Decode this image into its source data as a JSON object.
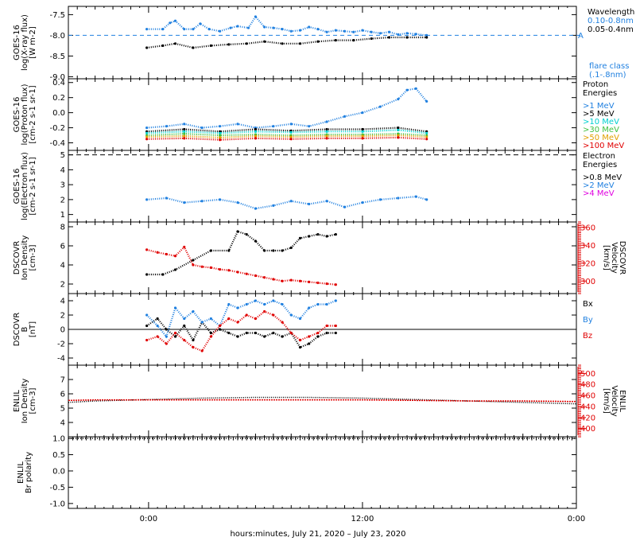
{
  "figure": {
    "xlabel": "hours:minutes, July 21, 2020 – July 23, 2020",
    "x_tick_labels": [
      "0:00",
      "12:00",
      "0:00"
    ]
  },
  "chart_data": [
    {
      "type": "scatter",
      "panel": "xray",
      "ylabel": [
        "GOES-16",
        "log(X-ray flux)",
        "[W m-2]"
      ],
      "yticks": [
        "-7.5",
        "-8.0",
        "-8.5",
        "-9.0"
      ],
      "ylim": [
        -9.05,
        -7.3
      ],
      "legend_title": "Wavelength",
      "flare_class": [
        "flare class",
        "(.1-.8nm)"
      ],
      "flare_marker": "A",
      "flare_level": -8.0,
      "series": [
        {
          "name": "0.10-0.8nm",
          "color": "#2080e0",
          "x": [
            -0.1,
            0.8,
            1.2,
            1.5,
            2.0,
            2.5,
            2.9,
            3.4,
            4.0,
            4.6,
            5.0,
            5.6,
            6.0,
            6.5,
            7.0,
            7.5,
            8.0,
            8.5,
            9.0,
            9.5,
            10.0,
            10.5,
            11.0,
            11.5,
            12.0,
            12.5,
            13.0,
            13.5,
            14.0,
            14.5,
            15.0,
            15.6
          ],
          "y": [
            -7.85,
            -7.85,
            -7.7,
            -7.65,
            -7.85,
            -7.85,
            -7.72,
            -7.85,
            -7.9,
            -7.82,
            -7.78,
            -7.82,
            -7.55,
            -7.8,
            -7.82,
            -7.85,
            -7.9,
            -7.88,
            -7.8,
            -7.85,
            -7.92,
            -7.88,
            -7.9,
            -7.92,
            -7.88,
            -7.92,
            -7.95,
            -7.92,
            -7.98,
            -7.95,
            -7.97,
            -8.0
          ]
        },
        {
          "name": "0.05-0.4nm",
          "color": "#000000",
          "x": [
            -0.1,
            0.8,
            1.5,
            2.5,
            3.5,
            4.5,
            5.5,
            6.5,
            7.5,
            8.5,
            9.5,
            10.5,
            11.5,
            12.5,
            13.5,
            14.5,
            15.6
          ],
          "y": [
            -8.3,
            -8.25,
            -8.2,
            -8.3,
            -8.25,
            -8.22,
            -8.2,
            -8.15,
            -8.2,
            -8.2,
            -8.15,
            -8.12,
            -8.12,
            -8.08,
            -8.05,
            -8.05,
            -8.05
          ]
        }
      ]
    },
    {
      "type": "scatter",
      "panel": "proton",
      "ylabel": [
        "GOES-16",
        "log(Proton flux)",
        "[cm-2 s-1 sr-1]"
      ],
      "yticks": [
        "0.4",
        "0.2",
        "0.0",
        "-0.2",
        "-0.4"
      ],
      "ylim": [
        -0.5,
        0.45
      ],
      "legend_title": [
        "Proton",
        "Energies"
      ],
      "series": [
        {
          "name": ">1 MeV",
          "color": "#2080e0",
          "x": [
            -0.1,
            1,
            2,
            3,
            4,
            5,
            6,
            7,
            8,
            9,
            10,
            11,
            12,
            13,
            14,
            14.5,
            15,
            15.6
          ],
          "y": [
            -0.2,
            -0.18,
            -0.15,
            -0.2,
            -0.18,
            -0.15,
            -0.2,
            -0.18,
            -0.15,
            -0.18,
            -0.12,
            -0.05,
            0.0,
            0.08,
            0.18,
            0.3,
            0.32,
            0.15
          ]
        },
        {
          "name": ">5 MeV",
          "color": "#000000",
          "x": [
            -0.1,
            2,
            4,
            6,
            8,
            10,
            12,
            14,
            15.6
          ],
          "y": [
            -0.25,
            -0.22,
            -0.25,
            -0.22,
            -0.24,
            -0.22,
            -0.22,
            -0.2,
            -0.25
          ]
        },
        {
          "name": ">10 MeV",
          "color": "#00d0d0",
          "x": [
            -0.1,
            2,
            4,
            6,
            8,
            10,
            12,
            14,
            15.6
          ],
          "y": [
            -0.27,
            -0.25,
            -0.27,
            -0.25,
            -0.26,
            -0.25,
            -0.25,
            -0.23,
            -0.27
          ]
        },
        {
          "name": ">30 MeV",
          "color": "#40c040",
          "x": [
            -0.1,
            2,
            4,
            6,
            8,
            10,
            12,
            14,
            15.6
          ],
          "y": [
            -0.3,
            -0.28,
            -0.3,
            -0.29,
            -0.3,
            -0.29,
            -0.29,
            -0.28,
            -0.3
          ]
        },
        {
          "name": ">50 MeV",
          "color": "#e0a000",
          "x": [
            -0.1,
            2,
            4,
            6,
            8,
            10,
            12,
            14,
            15.6
          ],
          "y": [
            -0.32,
            -0.31,
            -0.33,
            -0.31,
            -0.32,
            -0.31,
            -0.31,
            -0.3,
            -0.32
          ]
        },
        {
          "name": ">100 MeV",
          "color": "#e00000",
          "x": [
            -0.1,
            2,
            4,
            6,
            8,
            10,
            12,
            14,
            15.6
          ],
          "y": [
            -0.35,
            -0.34,
            -0.36,
            -0.34,
            -0.35,
            -0.34,
            -0.34,
            -0.33,
            -0.35
          ]
        }
      ]
    },
    {
      "type": "scatter",
      "panel": "electron",
      "ylabel": [
        "GOES-16",
        "log(Electron flux)",
        "[cm-2 s-1 sr-1]"
      ],
      "yticks": [
        "5",
        "4",
        "3",
        "2",
        "1"
      ],
      "ylim": [
        0.5,
        5.3
      ],
      "dashed_level": 5,
      "legend_title": [
        "Electron",
        "Energies"
      ],
      "series": [
        {
          "name": ">0.8 MeV",
          "color": "#000000",
          "x": [],
          "y": []
        },
        {
          "name": ">2 MeV",
          "color": "#2080e0",
          "x": [
            -0.1,
            1,
            2,
            3,
            4,
            5,
            6,
            7,
            8,
            9,
            10,
            11,
            12,
            13,
            14,
            15,
            15.6
          ],
          "y": [
            2.0,
            2.1,
            1.8,
            1.9,
            2.0,
            1.8,
            1.4,
            1.6,
            1.9,
            1.7,
            1.9,
            1.5,
            1.8,
            2.0,
            2.1,
            2.2,
            2.0
          ]
        },
        {
          "name": ">4 MeV",
          "color": "#e000e0",
          "x": [],
          "y": []
        }
      ]
    },
    {
      "type": "scatter",
      "panel": "dscovr_density",
      "ylabel": [
        "DSCOVR",
        "Ion Density",
        "[cm-3]"
      ],
      "y2label": [
        "DSCOVR",
        "Velocity",
        "[km/s]"
      ],
      "yticks": [
        "8",
        "6",
        "4",
        "2"
      ],
      "ylim": [
        1.0,
        8.5
      ],
      "y2ticks": [
        "360",
        "340",
        "320",
        "300"
      ],
      "y2lim": [
        286,
        366
      ],
      "series": [
        {
          "name": "density",
          "color": "#000000",
          "x": [
            -0.1,
            0.8,
            1.5,
            2.5,
            3.5,
            4.5,
            5.0,
            5.5,
            6.0,
            6.5,
            7.0,
            7.5,
            8.0,
            8.5,
            9.0,
            9.5,
            10.0,
            10.5
          ],
          "y": [
            3.0,
            3.0,
            3.5,
            4.5,
            5.5,
            5.5,
            7.5,
            7.2,
            6.5,
            5.5,
            5.5,
            5.5,
            5.8,
            6.8,
            7.0,
            7.2,
            7.0,
            7.2
          ]
        },
        {
          "name": "velocity",
          "color": "#e00000",
          "axis": "y2",
          "x": [
            -0.1,
            0.5,
            1.0,
            1.5,
            2.0,
            2.5,
            3.0,
            3.5,
            4.0,
            4.5,
            5.0,
            5.5,
            6.0,
            6.5,
            7.0,
            7.5,
            8.0,
            8.5,
            9.0,
            9.5,
            10.0,
            10.5
          ],
          "y": [
            335,
            332,
            330,
            328,
            338,
            318,
            316,
            315,
            313,
            312,
            310,
            308,
            306,
            304,
            302,
            300,
            301,
            300,
            299,
            298,
            297,
            296
          ]
        }
      ]
    },
    {
      "type": "scatter",
      "panel": "dscovr_b",
      "ylabel": [
        "DSCOVR",
        "B",
        "[nT]"
      ],
      "yticks": [
        "4",
        "2",
        "0",
        "-2",
        "-4"
      ],
      "ylim": [
        -5.0,
        5.0
      ],
      "series": [
        {
          "name": "Bx",
          "color": "#000000",
          "x": [
            -0.1,
            0.5,
            1.0,
            1.5,
            2.0,
            2.5,
            3.0,
            3.5,
            4.0,
            4.5,
            5.0,
            5.5,
            6.0,
            6.5,
            7.0,
            7.5,
            8.0,
            8.5,
            9.0,
            9.5,
            10.0,
            10.5
          ],
          "y": [
            0.5,
            1.5,
            0.0,
            -1.0,
            0.5,
            -1.5,
            1.0,
            -0.5,
            0.0,
            -0.5,
            -1.0,
            -0.5,
            -0.5,
            -1.0,
            -0.5,
            -1.0,
            -0.5,
            -2.5,
            -2.0,
            -1.0,
            -0.5,
            -0.5
          ]
        },
        {
          "name": "By",
          "color": "#2080e0",
          "x": [
            -0.1,
            0.5,
            1.0,
            1.5,
            2.0,
            2.5,
            3.0,
            3.5,
            4.0,
            4.5,
            5.0,
            5.5,
            6.0,
            6.5,
            7.0,
            7.5,
            8.0,
            8.5,
            9.0,
            9.5,
            10.0,
            10.5
          ],
          "y": [
            2.0,
            0.5,
            -1.0,
            3.0,
            1.5,
            2.5,
            1.0,
            1.5,
            0.5,
            3.5,
            3.0,
            3.5,
            4.0,
            3.5,
            4.0,
            3.5,
            2.0,
            1.5,
            3.0,
            3.5,
            3.5,
            4.0
          ]
        },
        {
          "name": "Bz",
          "color": "#e00000",
          "x": [
            -0.1,
            0.5,
            1.0,
            1.5,
            2.0,
            2.5,
            3.0,
            3.5,
            4.0,
            4.5,
            5.0,
            5.5,
            6.0,
            6.5,
            7.0,
            7.5,
            8.0,
            8.5,
            9.0,
            9.5,
            10.0,
            10.5
          ],
          "y": [
            -1.5,
            -1.0,
            -2.0,
            -0.5,
            -1.5,
            -2.5,
            -3.0,
            -1.0,
            0.5,
            1.5,
            1.0,
            2.0,
            1.5,
            2.5,
            2.0,
            1.0,
            -0.5,
            -1.5,
            -1.0,
            -0.5,
            0.5,
            0.5
          ]
        }
      ]
    },
    {
      "type": "line",
      "panel": "enlil_density",
      "ylabel": [
        "ENLIL",
        "Ion Density",
        "[cm-3]"
      ],
      "y2label": [
        "ENLIL",
        "Velocity",
        "[km/s]"
      ],
      "yticks": [
        "7",
        "6",
        "5",
        "4"
      ],
      "ylim": [
        3.0,
        8.0
      ],
      "y2ticks": [
        "500",
        "480",
        "460",
        "440",
        "420",
        "400"
      ],
      "y2lim": [
        385,
        515
      ],
      "series": [
        {
          "name": "density",
          "color": "#000000",
          "x": [
            -4.5,
            -3,
            0,
            3,
            6,
            9,
            12,
            15,
            18,
            21,
            24
          ],
          "y": [
            5.4,
            5.5,
            5.6,
            5.7,
            5.75,
            5.75,
            5.7,
            5.6,
            5.5,
            5.4,
            5.3
          ]
        },
        {
          "name": "velocity",
          "color": "#e00000",
          "axis": "y2",
          "x": [
            -4.5,
            -3,
            0,
            3,
            6,
            9,
            12,
            15,
            18,
            21,
            24
          ],
          "y": [
            451,
            452,
            452,
            452,
            452,
            452,
            452,
            451,
            450,
            450,
            449
          ]
        }
      ]
    },
    {
      "type": "line",
      "panel": "enlil_polarity",
      "ylabel": [
        "ENLIL",
        "Br polarity"
      ],
      "yticks": [
        "1.0",
        "0.5",
        "0.0",
        "-0.5",
        "-1.0"
      ],
      "ylim": [
        -1.15,
        1.05
      ],
      "series": [
        {
          "name": "polarity",
          "color": "#000000",
          "x": [
            -4.5,
            24
          ],
          "y": [
            1.0,
            1.0
          ]
        }
      ]
    }
  ]
}
